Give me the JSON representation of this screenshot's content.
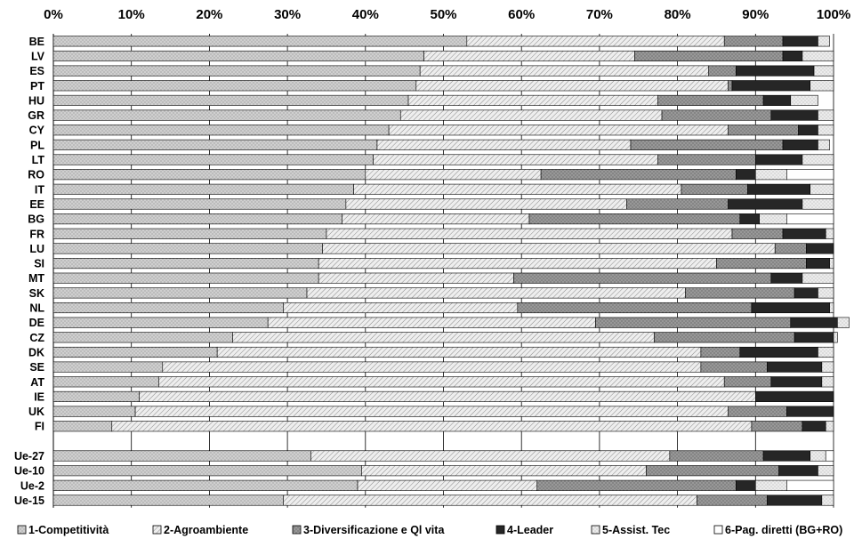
{
  "chart_data": {
    "type": "bar",
    "orientation": "horizontal",
    "stacked": "percent",
    "x_axis_position": "top",
    "xlim": [
      0,
      100
    ],
    "x_ticks": [
      "0%",
      "10%",
      "20%",
      "30%",
      "40%",
      "50%",
      "60%",
      "70%",
      "80%",
      "90%",
      "100%"
    ],
    "grid": true,
    "legend_position": "bottom",
    "categories": [
      "BE",
      "LV",
      "ES",
      "PT",
      "HU",
      "GR",
      "CY",
      "PL",
      "LT",
      "RO",
      "IT",
      "EE",
      "BG",
      "FR",
      "LU",
      "SI",
      "MT",
      "SK",
      "NL",
      "DE",
      "CZ",
      "DK",
      "SE",
      "AT",
      "IE",
      "UK",
      "FI",
      "",
      "Ue-27",
      "Ue-10",
      "Ue-2",
      "Ue-15"
    ],
    "series": [
      {
        "name": "1-Competitività",
        "color": "#a6a6a6",
        "pattern": "dots",
        "values": [
          53.0,
          47.5,
          47.0,
          46.5,
          45.5,
          44.5,
          43.0,
          41.5,
          41.0,
          40.0,
          38.5,
          37.5,
          37.0,
          35.0,
          34.5,
          34.0,
          34.0,
          32.5,
          29.5,
          27.5,
          23.0,
          21.0,
          14.0,
          13.5,
          11.0,
          10.5,
          7.5,
          null,
          33.0,
          39.5,
          39.0,
          29.5
        ]
      },
      {
        "name": "2-Agroambiente",
        "color": "#d9d9d9",
        "pattern": "hatch",
        "values": [
          33.0,
          27.0,
          37.0,
          40.0,
          32.0,
          33.5,
          43.5,
          32.5,
          36.5,
          22.5,
          42.0,
          36.0,
          24.0,
          52.0,
          58.0,
          51.0,
          25.0,
          48.5,
          30.0,
          42.0,
          54.0,
          62.0,
          69.0,
          72.5,
          79.0,
          76.0,
          82.0,
          null,
          46.0,
          36.5,
          23.0,
          53.0
        ]
      },
      {
        "name": "3-Diversificazione e Ql vita",
        "color": "#7f7f7f",
        "pattern": "dots",
        "values": [
          7.5,
          19.0,
          3.5,
          0.5,
          13.5,
          14.0,
          9.0,
          19.5,
          12.5,
          25.0,
          8.5,
          13.0,
          27.0,
          6.5,
          4.0,
          11.5,
          33.0,
          14.0,
          30.0,
          25.0,
          18.0,
          5.0,
          8.5,
          6.0,
          0,
          7.5,
          6.5,
          null,
          12.0,
          17.0,
          25.5,
          9.0
        ]
      },
      {
        "name": "4-Leader",
        "color": "#262626",
        "pattern": "solid",
        "values": [
          4.5,
          2.5,
          10.0,
          10.0,
          3.5,
          6.0,
          2.5,
          4.5,
          6.0,
          2.5,
          8.0,
          9.5,
          2.5,
          5.5,
          3.5,
          3.0,
          4.0,
          3.0,
          10.0,
          6.0,
          5.0,
          10.0,
          7.0,
          6.5,
          10.0,
          6.0,
          3.0,
          null,
          6.0,
          5.0,
          2.5,
          7.0
        ]
      },
      {
        "name": "5-Assist. Tec",
        "color": "#e6e6e6",
        "pattern": "dots",
        "values": [
          1.5,
          4.0,
          2.5,
          3.0,
          3.5,
          2.0,
          2.0,
          1.5,
          4.0,
          4.0,
          3.0,
          4.0,
          3.5,
          1.0,
          0,
          0.5,
          4.0,
          2.0,
          0.5,
          1.5,
          0.5,
          2.0,
          1.5,
          1.5,
          0,
          0,
          1.0,
          null,
          2.0,
          2.0,
          4.0,
          1.5
        ]
      },
      {
        "name": "6-Pag. diretti (BG+RO)",
        "color": "#ffffff",
        "pattern": "solid",
        "values": [
          0,
          0,
          0,
          0,
          0,
          0,
          0,
          0,
          0,
          6.0,
          0,
          0,
          6.0,
          0,
          0,
          0,
          0,
          0,
          0,
          0,
          0,
          0,
          0,
          0,
          0,
          0,
          0,
          null,
          1.0,
          0,
          6.0,
          0
        ]
      }
    ]
  }
}
